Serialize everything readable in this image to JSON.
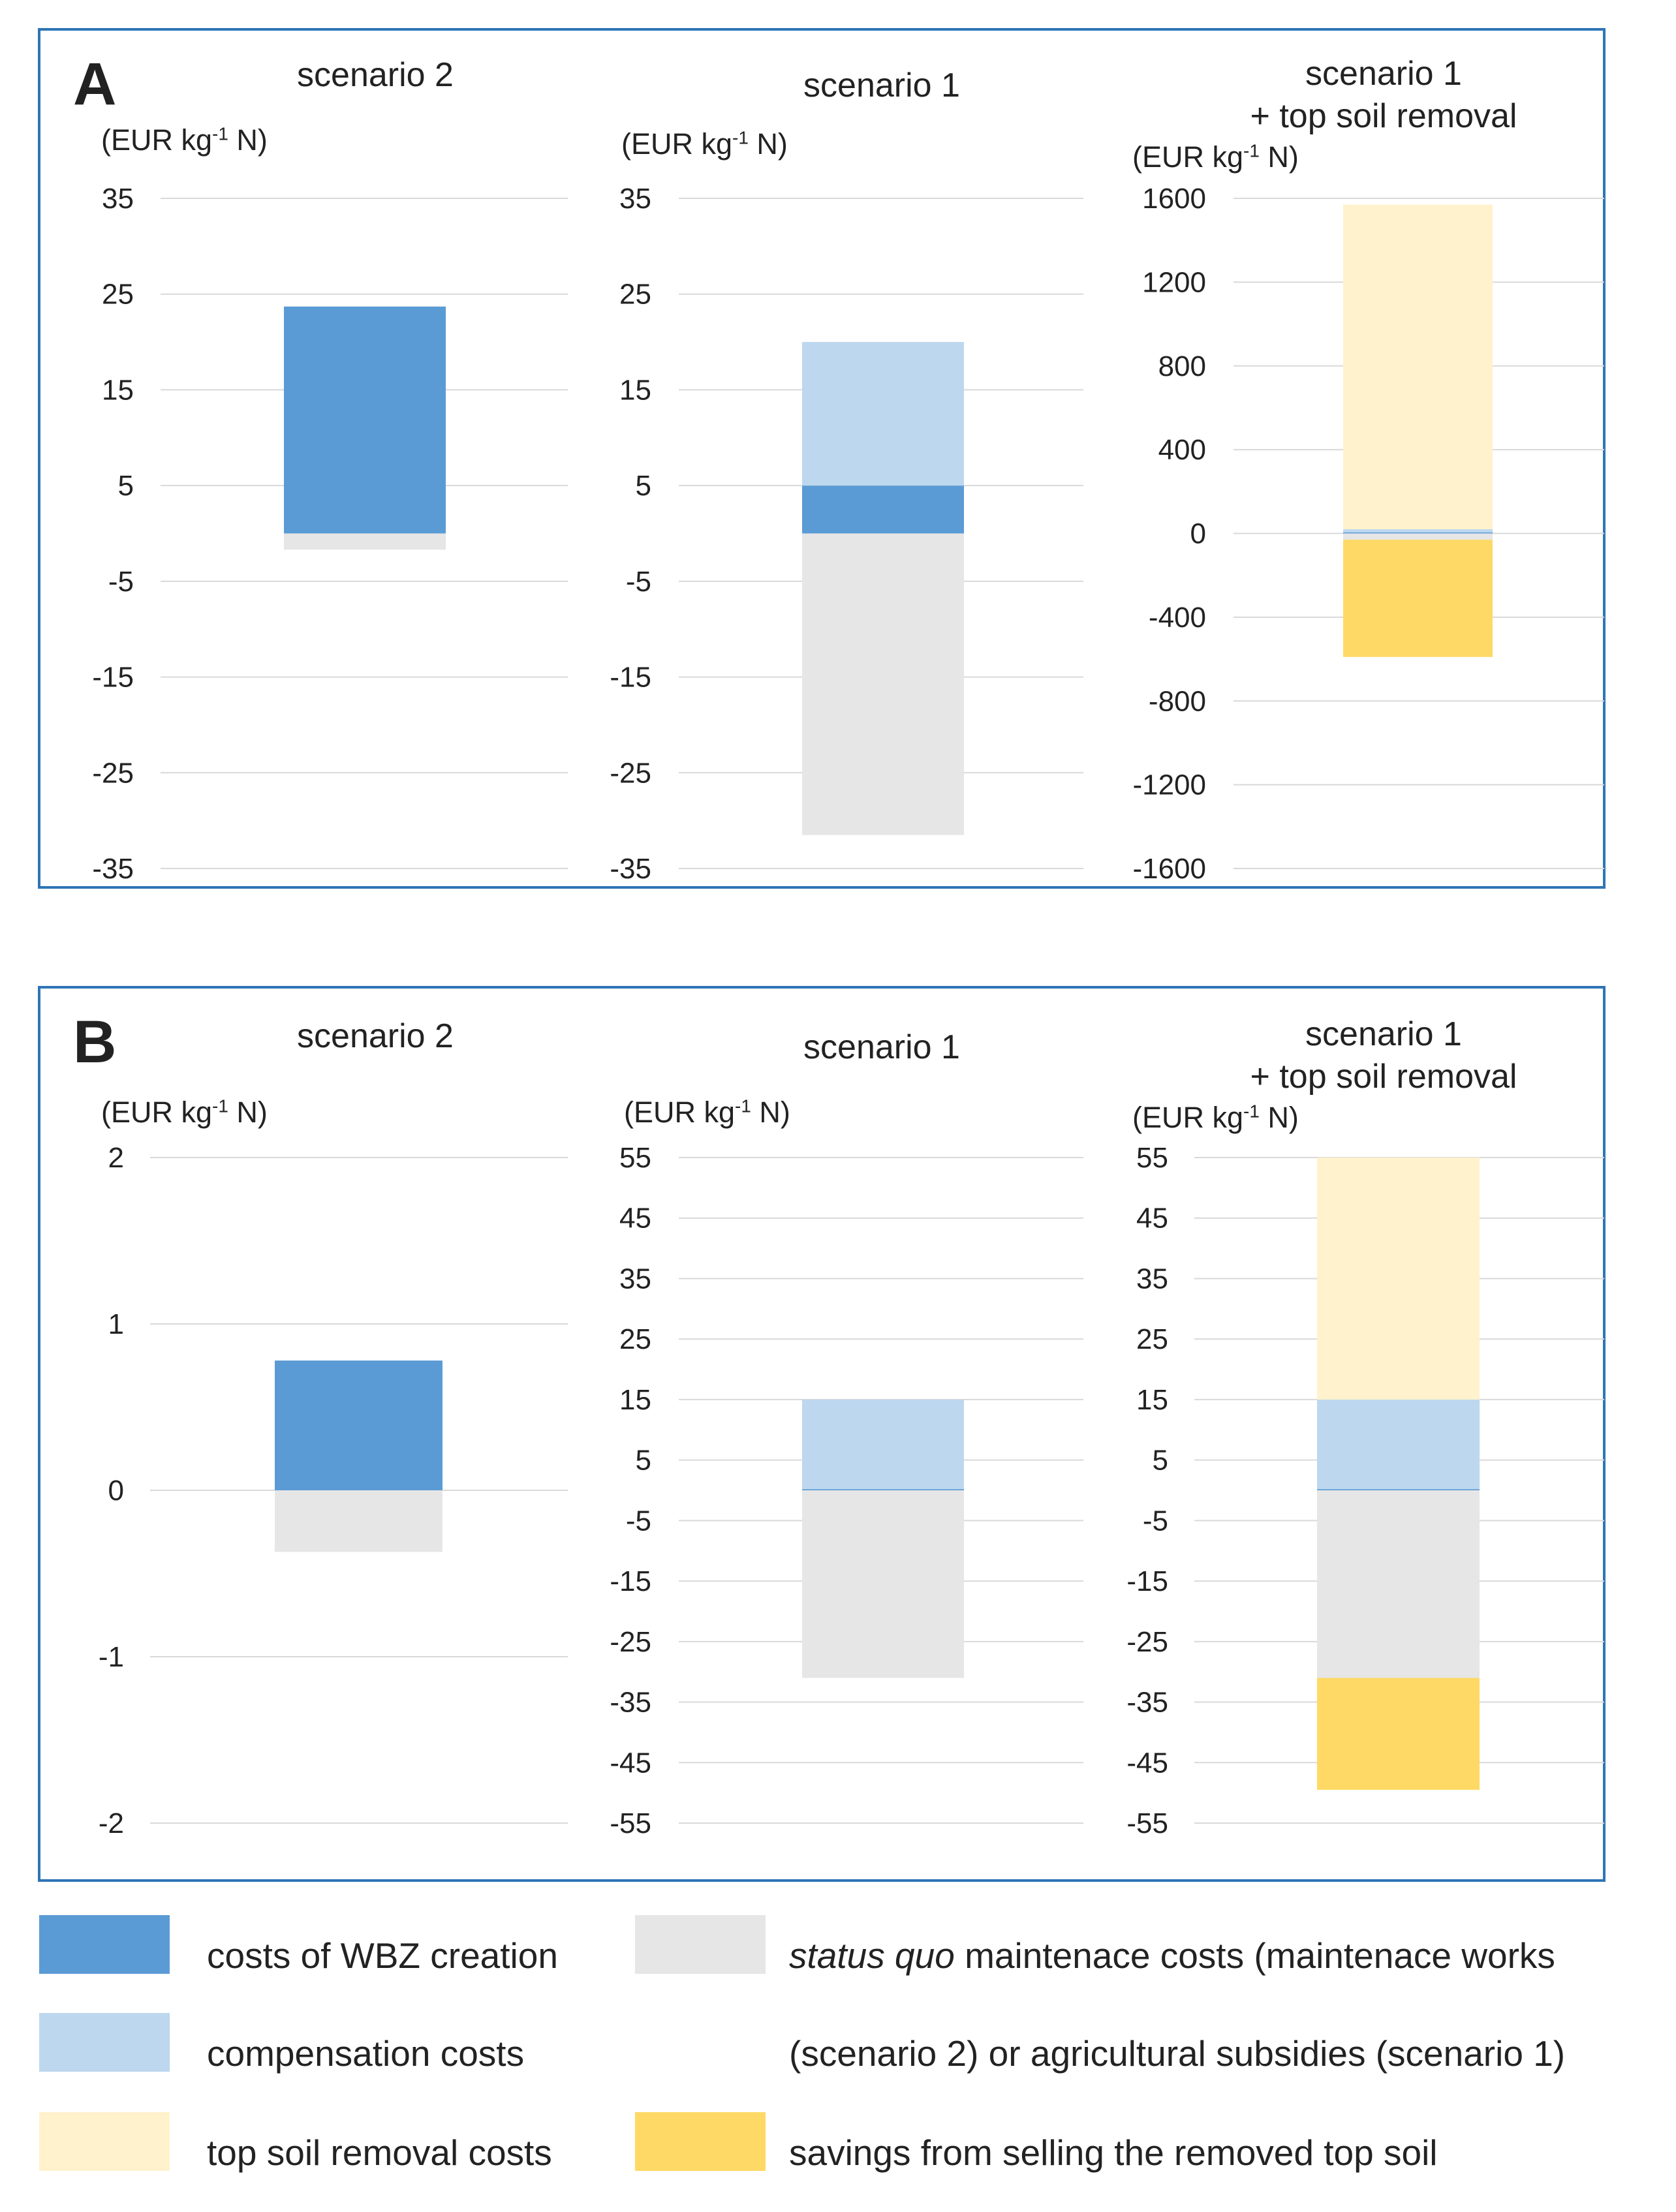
{
  "colors": {
    "wbz": "#5b9bd5",
    "compensation": "#bdd7ee",
    "topsoil": "#fff2cc",
    "status_quo": "#e6e6e6",
    "savings": "#ffd966",
    "frame": "#2e75b6",
    "grid": "#d9d9d9"
  },
  "chart_data": [
    {
      "panel": "A",
      "charts": [
        {
          "type": "bar",
          "stacked": true,
          "title": "scenario 2",
          "title_line2": "",
          "ylabel": "(EUR kg-1 N)",
          "yticks": [
            35,
            25,
            15,
            5,
            -5,
            -15,
            -25,
            -35
          ],
          "ylim": [
            -35,
            35
          ],
          "series": [
            {
              "name": "costs of WBZ creation",
              "color_key": "wbz",
              "from": 0,
              "to": 23.7
            },
            {
              "name": "status quo maintenace costs",
              "color_key": "status_quo",
              "from": 0,
              "to": -1.7
            }
          ]
        },
        {
          "type": "bar",
          "stacked": true,
          "title": "scenario 1",
          "title_line2": "",
          "ylabel": "(EUR kg-1 N)",
          "yticks": [
            35,
            25,
            15,
            5,
            -5,
            -15,
            -25,
            -35
          ],
          "ylim": [
            -35,
            35
          ],
          "series": [
            {
              "name": "costs of WBZ creation",
              "color_key": "wbz",
              "from": 0,
              "to": 5
            },
            {
              "name": "compensation costs",
              "color_key": "compensation",
              "from": 5,
              "to": 20
            },
            {
              "name": "status quo maintenace costs",
              "color_key": "status_quo",
              "from": 0,
              "to": -31.5
            }
          ]
        },
        {
          "type": "bar",
          "stacked": true,
          "title": "scenario 1",
          "title_line2": "+ top soil removal",
          "ylabel": "(EUR kg-1 N)",
          "yticks": [
            1600,
            1200,
            800,
            400,
            0,
            -400,
            -800,
            -1200,
            -1600
          ],
          "ylim": [
            -1600,
            1600
          ],
          "series": [
            {
              "name": "costs of WBZ creation",
              "color_key": "wbz",
              "from": 0,
              "to": 5
            },
            {
              "name": "compensation costs",
              "color_key": "compensation",
              "from": 5,
              "to": 20
            },
            {
              "name": "top soil removal costs",
              "color_key": "topsoil",
              "from": 20,
              "to": 1570
            },
            {
              "name": "status quo maintenace costs",
              "color_key": "status_quo",
              "from": 0,
              "to": -30
            },
            {
              "name": "savings from selling the removed top soil",
              "color_key": "savings",
              "from": -30,
              "to": -590
            }
          ]
        }
      ]
    },
    {
      "panel": "B",
      "charts": [
        {
          "type": "bar",
          "stacked": true,
          "title": "scenario 2",
          "title_line2": "",
          "ylabel": "(EUR kg-1 N)",
          "yticks": [
            2,
            1,
            0,
            -1,
            -2
          ],
          "ylim": [
            -2,
            2
          ],
          "series": [
            {
              "name": "costs of WBZ creation",
              "color_key": "wbz",
              "from": 0,
              "to": 0.78
            },
            {
              "name": "status quo maintenace costs",
              "color_key": "status_quo",
              "from": 0,
              "to": -0.37
            }
          ]
        },
        {
          "type": "bar",
          "stacked": true,
          "title": "scenario 1",
          "title_line2": "",
          "ylabel": "(EUR kg-1 N)",
          "yticks": [
            55,
            45,
            35,
            25,
            15,
            5,
            -5,
            -15,
            -25,
            -35,
            -45,
            -55
          ],
          "ylim": [
            -55,
            55
          ],
          "series": [
            {
              "name": "costs of WBZ creation",
              "color_key": "wbz",
              "from": 0,
              "to": 0.2
            },
            {
              "name": "compensation costs",
              "color_key": "compensation",
              "from": 0.2,
              "to": 15
            },
            {
              "name": "status quo maintenace costs",
              "color_key": "status_quo",
              "from": 0,
              "to": -31
            }
          ]
        },
        {
          "type": "bar",
          "stacked": true,
          "title": "scenario 1",
          "title_line2": "+ top soil removal",
          "ylabel": "(EUR kg-1 N)",
          "yticks": [
            55,
            45,
            35,
            25,
            15,
            5,
            -5,
            -15,
            -25,
            -35,
            -45,
            -55
          ],
          "ylim": [
            -55,
            55
          ],
          "series": [
            {
              "name": "costs of WBZ creation",
              "color_key": "wbz",
              "from": 0,
              "to": 0.2
            },
            {
              "name": "compensation costs",
              "color_key": "compensation",
              "from": 0.2,
              "to": 15
            },
            {
              "name": "top soil removal costs",
              "color_key": "topsoil",
              "from": 15,
              "to": 55
            },
            {
              "name": "status quo maintenace costs",
              "color_key": "status_quo",
              "from": 0,
              "to": -31
            },
            {
              "name": "savings from selling the removed top soil",
              "color_key": "savings",
              "from": -31,
              "to": -49.5
            }
          ]
        }
      ]
    }
  ],
  "legend": {
    "wbz": "costs of WBZ creation",
    "compensation": "compensation costs",
    "topsoil": "top soil removal costs",
    "status_quo_italic": "status quo",
    "status_quo_rest": " maintenace costs (maintenace works",
    "status_quo_line2": "(scenario 2) or agricultural subsidies (scenario 1)",
    "savings": "savings from selling the removed top soil"
  }
}
